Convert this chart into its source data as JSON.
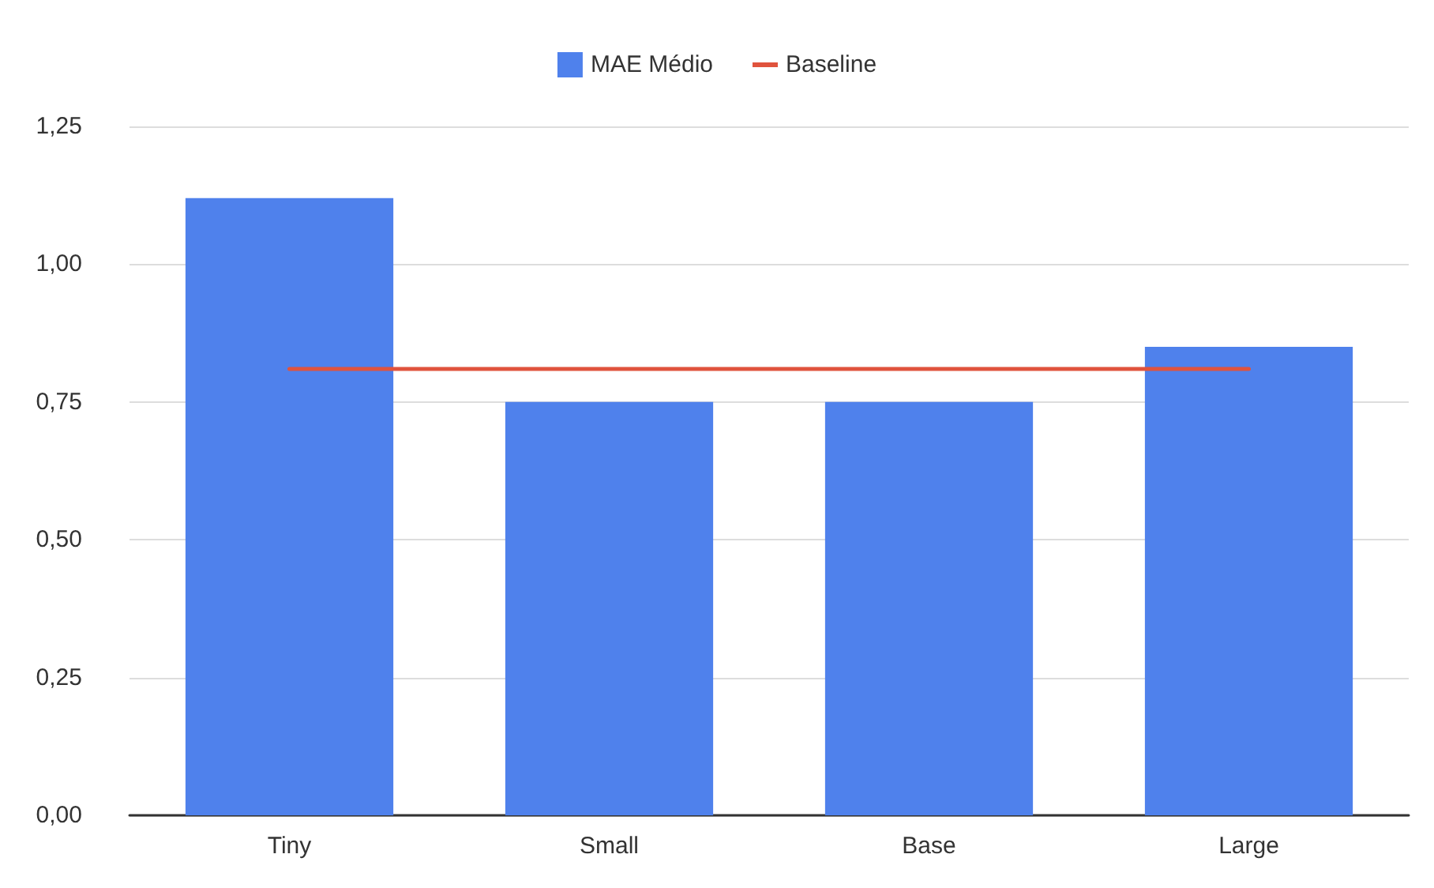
{
  "chart_data": {
    "type": "bar",
    "categories": [
      "Tiny",
      "Small",
      "Base",
      "Large"
    ],
    "series": [
      {
        "name": "MAE Médio",
        "color": "#4f81ec",
        "values": [
          1.12,
          0.75,
          0.75,
          0.85
        ]
      },
      {
        "name": "Baseline",
        "type": "line",
        "color": "#e0533d",
        "values": [
          0.81,
          0.81,
          0.81,
          0.81
        ]
      }
    ],
    "ylim": [
      0,
      1.25
    ],
    "yticks": [
      {
        "value": 0,
        "label": "0,00"
      },
      {
        "value": 0.25,
        "label": "0,25"
      },
      {
        "value": 0.5,
        "label": "0,50"
      },
      {
        "value": 0.75,
        "label": "0,75"
      },
      {
        "value": 1,
        "label": "1,00"
      },
      {
        "value": 1.25,
        "label": "1,25"
      }
    ],
    "grid": "y",
    "legend": "top",
    "marker": "none",
    "line_style": "solid"
  }
}
